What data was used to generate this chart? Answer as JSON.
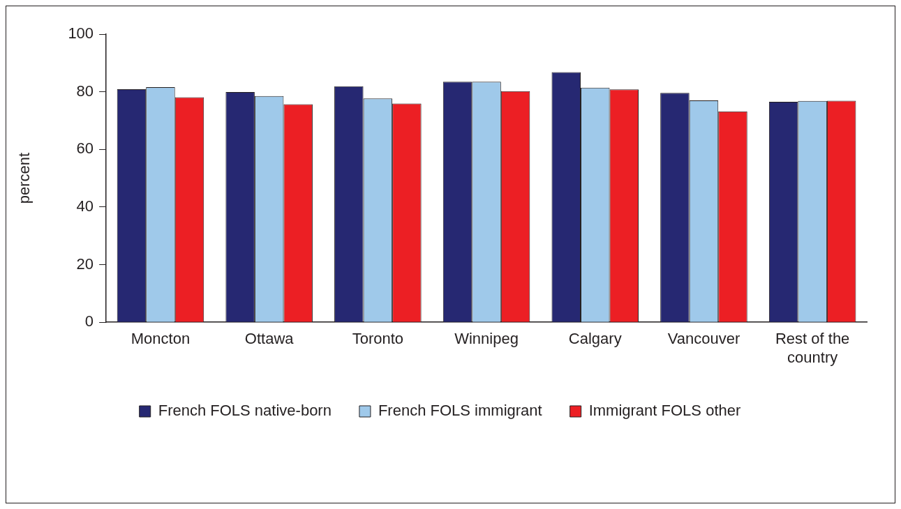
{
  "chart_data": {
    "type": "bar",
    "ylabel": "percent",
    "categories": [
      "Moncton",
      "Ottawa",
      "Toronto",
      "Winnipeg",
      "Calgary",
      "Vancouver",
      "Rest of the country"
    ],
    "series": [
      {
        "name": "French FOLS native-born",
        "color": "#262872",
        "values": [
          80.9,
          79.9,
          81.9,
          83.5,
          86.8,
          79.6,
          76.5
        ]
      },
      {
        "name": "French FOLS immigrant",
        "color": "#9fc9ea",
        "values": [
          81.6,
          78.5,
          77.7,
          83.5,
          81.4,
          77.0,
          76.8
        ]
      },
      {
        "name": "Immigrant FOLS other",
        "color": "#ec1f24",
        "values": [
          78.1,
          75.7,
          75.9,
          80.2,
          80.8,
          73.2,
          76.9
        ]
      }
    ],
    "ylim": [
      0,
      100
    ],
    "yticks": [
      0,
      20,
      40,
      60,
      80,
      100
    ],
    "grid": false,
    "legend": "bottom"
  }
}
